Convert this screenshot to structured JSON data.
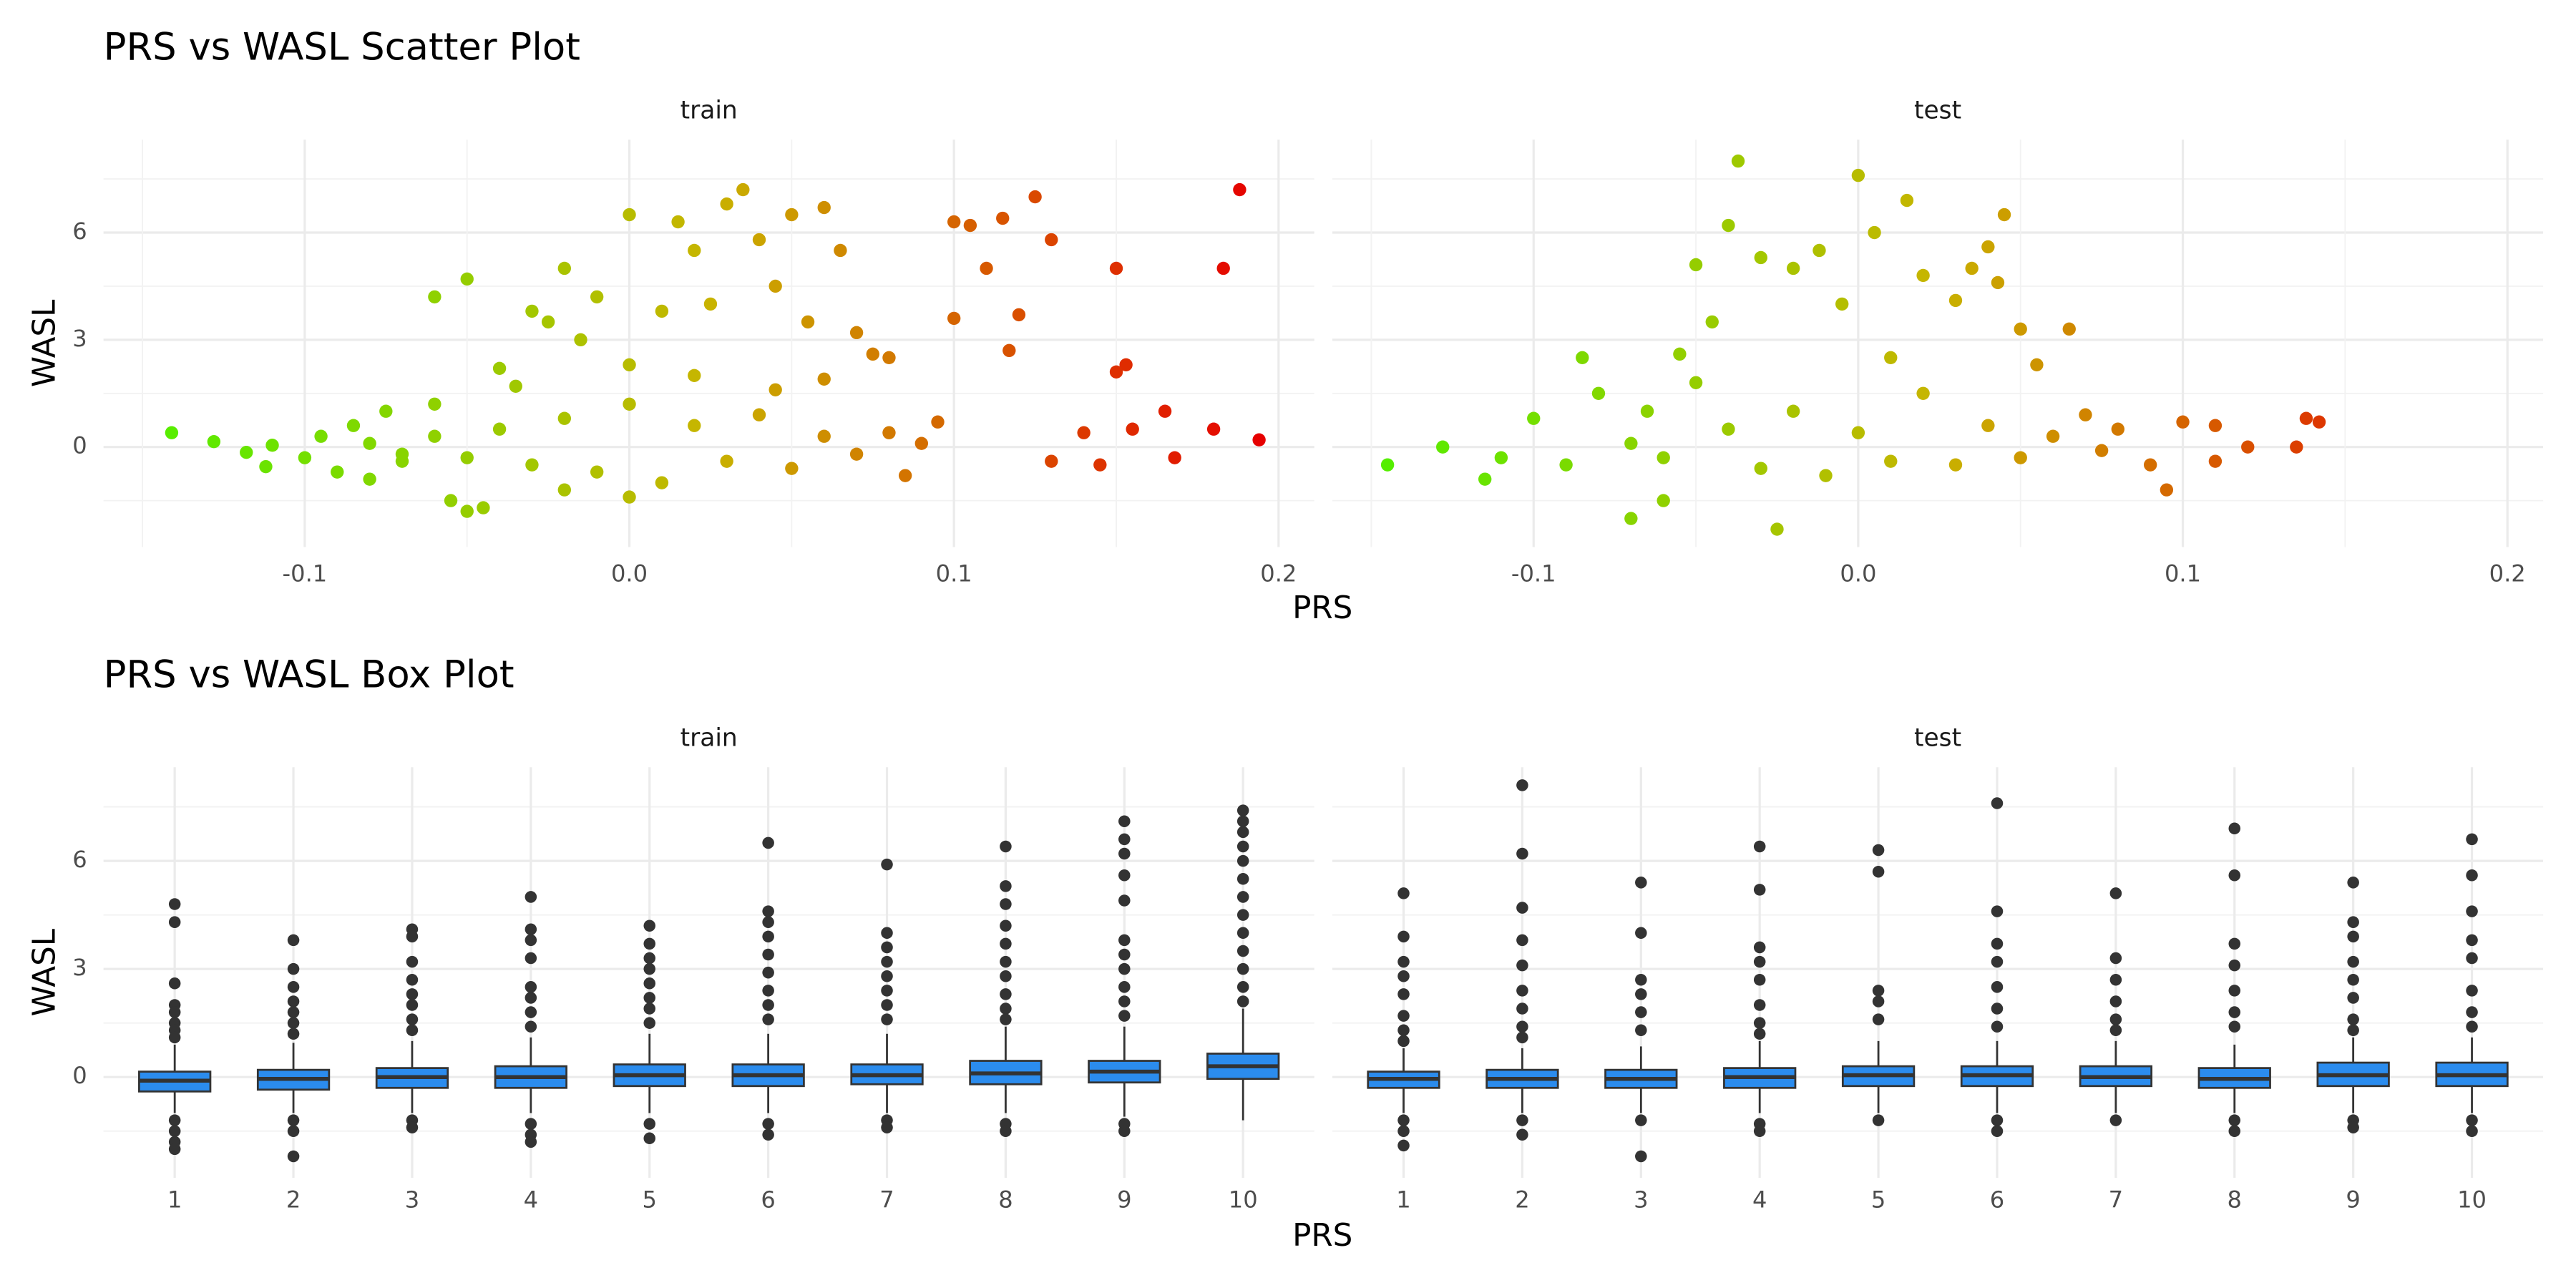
{
  "chart_data": [
    {
      "type": "scatter",
      "title": "PRS vs WASL Scatter Plot",
      "xlabel": "PRS",
      "ylabel": "WASL",
      "colors": [
        "#55ee00",
        "#c8b400",
        "#e60000"
      ],
      "panels": [
        {
          "label": "train",
          "x": [
            -0.141,
            -0.128,
            -0.118,
            -0.112,
            -0.11,
            -0.1,
            -0.095,
            -0.09,
            -0.085,
            -0.08,
            -0.075,
            -0.07,
            -0.06,
            -0.05,
            -0.055,
            -0.05,
            -0.045,
            -0.06,
            -0.04,
            -0.03,
            -0.025,
            -0.02,
            -0.015,
            -0.01,
            0.0,
            0.01,
            0.015,
            0.02,
            0.025,
            0.03,
            0.035,
            0.04,
            0.045,
            0.05,
            0.055,
            0.06,
            0.065,
            0.07,
            0.075,
            0.08,
            0.1,
            0.105,
            0.11,
            0.115,
            0.12,
            0.125,
            0.13,
            0.1,
            0.117,
            0.14,
            0.145,
            0.15,
            0.153,
            0.155,
            0.165,
            0.168,
            0.18,
            0.183,
            0.188,
            0.194,
            0.13,
            0.15,
            -0.08,
            -0.07,
            -0.06,
            -0.05,
            -0.04,
            -0.03,
            -0.02,
            -0.01,
            0.0,
            0.01,
            0.02,
            0.03,
            0.04,
            0.05,
            0.06,
            0.07,
            0.08,
            0.09,
            0.095,
            0.085,
            -0.035,
            0.0,
            0.02,
            -0.02,
            0.0,
            0.045,
            0.06
          ],
          "y": [
            0.4,
            0.15,
            -0.15,
            -0.55,
            0.05,
            -0.3,
            0.3,
            -0.7,
            0.6,
            -0.9,
            1.0,
            -0.4,
            4.2,
            4.7,
            -1.5,
            -1.8,
            -1.7,
            1.2,
            2.2,
            3.8,
            3.5,
            5.0,
            3.0,
            4.2,
            6.5,
            3.8,
            6.3,
            5.5,
            4.0,
            6.8,
            7.2,
            5.8,
            4.5,
            6.5,
            3.5,
            6.7,
            5.5,
            3.2,
            2.6,
            2.5,
            6.3,
            6.2,
            5.0,
            6.4,
            3.7,
            7.0,
            5.8,
            3.6,
            2.7,
            0.4,
            -0.5,
            5.0,
            2.3,
            0.5,
            1.0,
            -0.3,
            0.5,
            5.0,
            7.2,
            0.2,
            -0.4,
            2.1,
            0.1,
            -0.2,
            0.3,
            -0.3,
            0.5,
            -0.5,
            0.8,
            -0.7,
            1.2,
            -1.0,
            0.6,
            -0.4,
            0.9,
            -0.6,
            0.3,
            -0.2,
            0.4,
            0.1,
            0.7,
            -0.8,
            1.7,
            2.3,
            2.0,
            -1.2,
            -1.4,
            1.6,
            1.9
          ]
        },
        {
          "label": "test",
          "x": [
            -0.145,
            -0.128,
            -0.115,
            -0.11,
            -0.1,
            -0.09,
            -0.085,
            -0.08,
            -0.07,
            -0.065,
            -0.06,
            -0.055,
            -0.05,
            -0.045,
            -0.04,
            -0.037,
            -0.03,
            -0.025,
            -0.02,
            -0.012,
            -0.005,
            0.0,
            0.005,
            0.015,
            0.02,
            0.03,
            0.035,
            0.04,
            0.045,
            0.043,
            0.05,
            0.055,
            0.065,
            0.07,
            0.08,
            0.09,
            0.095,
            0.1,
            0.11,
            0.12,
            0.135,
            0.138,
            0.142,
            -0.07,
            -0.06,
            -0.04,
            -0.03,
            -0.02,
            -0.01,
            0.0,
            0.01,
            0.02,
            0.03,
            0.04,
            0.05,
            0.06,
            0.075,
            -0.05,
            0.01,
            0.11
          ],
          "y": [
            -0.5,
            0.0,
            -0.9,
            -0.3,
            0.8,
            -0.5,
            2.5,
            1.5,
            -2.0,
            1.0,
            -1.5,
            2.6,
            5.1,
            3.5,
            6.2,
            8.0,
            5.3,
            -2.3,
            5.0,
            5.5,
            4.0,
            7.6,
            6.0,
            6.9,
            4.8,
            4.1,
            5.0,
            5.6,
            6.5,
            4.6,
            3.3,
            2.3,
            3.3,
            0.9,
            0.5,
            -0.5,
            -1.2,
            0.7,
            0.6,
            0.0,
            0.0,
            0.8,
            0.7,
            0.1,
            -0.3,
            0.5,
            -0.6,
            1.0,
            -0.8,
            0.4,
            -0.4,
            1.5,
            -0.5,
            0.6,
            -0.3,
            0.3,
            -0.1,
            1.8,
            2.5,
            -0.4
          ]
        }
      ],
      "xlim": [
        -0.162,
        0.211
      ],
      "ylim": [
        -2.8,
        8.6
      ],
      "xticks": [
        -0.1,
        {
          "value": 0,
          "label": "0.0"
        },
        0.1,
        0.2
      ],
      "xminor": [
        -0.15,
        -0.05,
        0.05,
        0.15
      ],
      "yticks": [
        0,
        3,
        6
      ],
      "yminor": [
        -1.5,
        1.5,
        4.5,
        7.5
      ],
      "grid": true
    },
    {
      "type": "box",
      "title": "PRS vs WASL Box Plot",
      "xlabel": "PRS",
      "ylabel": "WASL",
      "color": "#2b8cee",
      "categories": [
        "1",
        "2",
        "3",
        "4",
        "5",
        "6",
        "7",
        "8",
        "9",
        "10"
      ],
      "panels": [
        {
          "label": "train",
          "low": [
            -1.0,
            -1.0,
            -1.0,
            -1.0,
            -1.0,
            -1.0,
            -1.0,
            -1.0,
            -1.1,
            -1.2
          ],
          "q1": [
            -0.4,
            -0.35,
            -0.3,
            -0.3,
            -0.25,
            -0.25,
            -0.2,
            -0.2,
            -0.15,
            -0.05
          ],
          "median": [
            -0.1,
            -0.05,
            0.0,
            0.0,
            0.05,
            0.05,
            0.05,
            0.1,
            0.15,
            0.3
          ],
          "q3": [
            0.15,
            0.2,
            0.25,
            0.3,
            0.35,
            0.35,
            0.35,
            0.45,
            0.45,
            0.65
          ],
          "high": [
            0.9,
            0.95,
            1.0,
            1.1,
            1.2,
            1.2,
            1.2,
            1.4,
            1.4,
            1.9
          ],
          "outliers": [
            [
              4.8,
              4.3,
              2.6,
              2.0,
              1.8,
              1.5,
              1.3,
              1.1,
              -1.2,
              -1.5,
              -1.8,
              -2.0
            ],
            [
              3.8,
              3.0,
              2.5,
              2.1,
              1.8,
              1.5,
              1.2,
              -1.2,
              -1.5,
              -2.2
            ],
            [
              4.1,
              3.9,
              3.2,
              2.7,
              2.3,
              2.0,
              1.6,
              1.3,
              -1.2,
              -1.4
            ],
            [
              5.0,
              4.1,
              3.8,
              3.3,
              2.5,
              2.2,
              1.8,
              1.4,
              -1.3,
              -1.6,
              -1.8
            ],
            [
              4.2,
              3.7,
              3.3,
              3.0,
              2.6,
              2.2,
              1.9,
              1.5,
              -1.3,
              -1.7
            ],
            [
              6.5,
              4.6,
              4.3,
              3.9,
              3.4,
              2.9,
              2.4,
              2.0,
              1.6,
              -1.3,
              -1.6
            ],
            [
              5.9,
              4.0,
              3.6,
              3.2,
              2.8,
              2.4,
              2.0,
              1.6,
              -1.2,
              -1.4
            ],
            [
              6.4,
              5.3,
              4.8,
              4.2,
              3.7,
              3.2,
              2.8,
              2.3,
              1.9,
              1.6,
              -1.3,
              -1.5
            ],
            [
              7.1,
              6.6,
              6.2,
              5.6,
              4.9,
              3.8,
              3.4,
              3.0,
              2.5,
              2.1,
              1.7,
              -1.3,
              -1.5
            ],
            [
              7.4,
              7.1,
              6.8,
              6.4,
              6.0,
              5.5,
              5.0,
              4.5,
              4.0,
              3.5,
              3.0,
              2.5,
              2.1
            ]
          ]
        },
        {
          "label": "test",
          "low": [
            -1.0,
            -1.0,
            -1.0,
            -1.0,
            -1.0,
            -1.0,
            -1.0,
            -1.0,
            -1.0,
            -1.0
          ],
          "q1": [
            -0.3,
            -0.3,
            -0.3,
            -0.3,
            -0.25,
            -0.25,
            -0.25,
            -0.3,
            -0.25,
            -0.25
          ],
          "median": [
            -0.05,
            -0.05,
            -0.05,
            0.0,
            0.05,
            0.05,
            0.0,
            -0.05,
            0.05,
            0.05
          ],
          "q3": [
            0.15,
            0.2,
            0.2,
            0.25,
            0.3,
            0.3,
            0.3,
            0.25,
            0.4,
            0.4
          ],
          "high": [
            0.8,
            0.8,
            0.85,
            1.0,
            1.0,
            1.0,
            1.0,
            0.9,
            1.1,
            1.1
          ],
          "outliers": [
            [
              5.1,
              3.9,
              3.2,
              2.8,
              2.3,
              1.7,
              1.3,
              1.0,
              -1.2,
              -1.5,
              -1.9
            ],
            [
              8.1,
              6.2,
              4.7,
              3.8,
              3.1,
              2.4,
              1.9,
              1.4,
              1.1,
              -1.2,
              -1.6
            ],
            [
              5.4,
              4.0,
              2.7,
              2.3,
              1.8,
              1.3,
              -1.2,
              -2.2
            ],
            [
              6.4,
              5.2,
              3.6,
              3.2,
              2.7,
              2.0,
              1.5,
              1.2,
              -1.3,
              -1.5
            ],
            [
              6.3,
              5.7,
              2.4,
              2.1,
              1.6,
              -1.2
            ],
            [
              7.6,
              4.6,
              3.7,
              3.2,
              2.5,
              1.9,
              1.4,
              -1.2,
              -1.5
            ],
            [
              5.1,
              3.3,
              2.7,
              2.1,
              1.6,
              1.3,
              -1.2
            ],
            [
              6.9,
              5.6,
              3.7,
              3.1,
              2.4,
              1.8,
              1.4,
              -1.2,
              -1.5
            ],
            [
              5.4,
              4.3,
              3.9,
              3.2,
              2.7,
              2.2,
              1.6,
              1.3,
              -1.2,
              -1.4
            ],
            [
              6.6,
              5.6,
              4.6,
              3.8,
              3.3,
              2.4,
              1.8,
              1.4,
              -1.2,
              -1.5
            ]
          ]
        }
      ],
      "ylim": [
        -2.8,
        8.6
      ],
      "yticks": [
        0,
        3,
        6
      ],
      "yminor": [
        -1.5,
        1.5,
        4.5,
        7.5
      ],
      "grid": true
    }
  ]
}
